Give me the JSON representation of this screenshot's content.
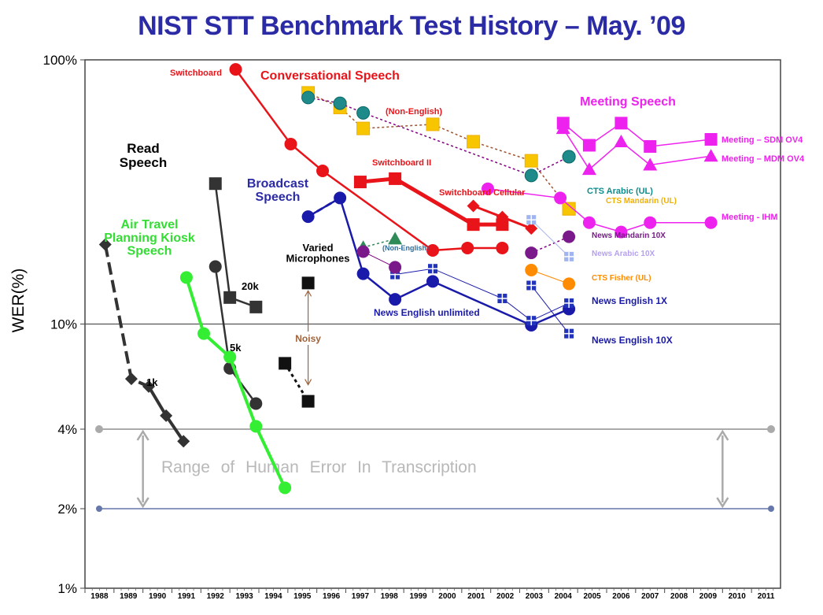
{
  "chart_data": {
    "type": "line",
    "title": "NIST STT Benchmark Test History – May. ’09",
    "xlabel": "",
    "ylabel": "WER(%)",
    "yscale": "log",
    "ylim": [
      1,
      100
    ],
    "xlim": [
      1988,
      2011
    ],
    "y_ticks": [
      {
        "value": 100,
        "label": "100%"
      },
      {
        "value": 10,
        "label": "10%"
      },
      {
        "value": 4,
        "label": "4%"
      },
      {
        "value": 2,
        "label": "2%"
      },
      {
        "value": 1,
        "label": "1%"
      }
    ],
    "x_ticks": [
      "1988",
      "1989",
      "1990",
      "1991",
      "1992",
      "1993",
      "1994",
      "1995",
      "1996",
      "1997",
      "1998",
      "1999",
      "2000",
      "2001",
      "2002",
      "2003",
      "2004",
      "2005",
      "2006",
      "2007",
      "2008",
      "2009",
      "2010",
      "2011"
    ],
    "human_error_range": {
      "label": "Range of Human Error In Transcription",
      "low": 2,
      "high": 4
    },
    "category_labels": [
      {
        "id": "read",
        "text": [
          "Read",
          "Speech"
        ],
        "color": "#000000"
      },
      {
        "id": "air",
        "text": [
          "Air Travel",
          "Planning Kiosk",
          "Speech"
        ],
        "color": "#33dd33"
      },
      {
        "id": "broadcast",
        "text": [
          "Broadcast",
          "Speech"
        ],
        "color": "#2b2ba6"
      },
      {
        "id": "conversational",
        "text": [
          "Conversational Speech"
        ],
        "color": "#e8141a"
      },
      {
        "id": "meeting",
        "text": [
          "Meeting Speech"
        ],
        "color": "#ee22ee"
      },
      {
        "id": "varied",
        "text": [
          "Varied",
          "Microphones"
        ],
        "color": "#000000"
      }
    ],
    "annotations": [
      {
        "id": "noisy",
        "text": "Noisy",
        "color": "#a0623a",
        "x": 1995.2,
        "y_from": 14.3,
        "y_to": 5.5
      }
    ],
    "series": [
      {
        "name": "Read 1k",
        "label": "1k",
        "color": "#333333",
        "marker": "diamond",
        "dash": "16,7",
        "width": 4,
        "dashed_segments": 2,
        "points": [
          [
            1988.2,
            20
          ],
          [
            1989.1,
            6.2
          ],
          [
            1989.7,
            5.8
          ],
          [
            1990.3,
            4.5
          ],
          [
            1990.9,
            3.6
          ]
        ]
      },
      {
        "name": "Read 5k",
        "label": "5k",
        "color": "#333333",
        "marker": "circle",
        "width": 2.5,
        "points": [
          [
            1992.0,
            16.5
          ],
          [
            1992.5,
            6.8
          ],
          [
            1993.4,
            5
          ]
        ]
      },
      {
        "name": "Read 20k",
        "label": "20k",
        "color": "#333333",
        "marker": "square",
        "width": 2.5,
        "points": [
          [
            1992.0,
            34
          ],
          [
            1992.5,
            12.6
          ],
          [
            1993.4,
            11.6
          ]
        ]
      },
      {
        "name": "Air Travel Planning Kiosk",
        "label": "",
        "color": "#33ee33",
        "marker": "circle",
        "width": 4,
        "points": [
          [
            1991.0,
            15
          ],
          [
            1991.6,
            9.2
          ],
          [
            1992.5,
            7.5
          ],
          [
            1993.4,
            4.1
          ],
          [
            1994.4,
            2.4
          ]
        ]
      },
      {
        "name": "Varied Microphones Noisy",
        "label": "",
        "color": "#111111",
        "marker": "square",
        "dash": "4,4",
        "width": 3,
        "points": [
          [
            1994.4,
            7.1
          ],
          [
            1995.2,
            5.1
          ]
        ]
      },
      {
        "name": "Varied Microphones",
        "label": "",
        "color": "#111111",
        "marker": "square",
        "width": 2,
        "points": [
          [
            1995.2,
            14.3
          ]
        ]
      },
      {
        "name": "Switchboard",
        "label": "Switchboard",
        "color": "#e8141a",
        "marker": "circle",
        "width": 2.5,
        "points": [
          [
            1992.7,
            92
          ],
          [
            1994.6,
            48
          ],
          [
            1995.7,
            38
          ],
          [
            1999.5,
            19
          ],
          [
            2000.7,
            19.4
          ],
          [
            2001.9,
            19.4
          ]
        ]
      },
      {
        "name": "Switchboard II",
        "label": "Switchboard II",
        "color": "#e8141a",
        "marker": "square",
        "width": 5,
        "points": [
          [
            1997.0,
            34.5
          ],
          [
            1998.2,
            35.5
          ],
          [
            2000.9,
            23.8
          ],
          [
            2001.9,
            23.8
          ]
        ]
      },
      {
        "name": "Switchboard Cellular",
        "label": "Switchboard Cellular",
        "color": "#e8141a",
        "marker": "diamond",
        "width": 3,
        "points": [
          [
            2000.9,
            28
          ],
          [
            2001.9,
            25.4
          ],
          [
            2002.9,
            23
          ]
        ]
      },
      {
        "name": "Conversational (Non-English) A",
        "label": "(Non-English)",
        "color": "#a0522d",
        "marker": "square-yellow",
        "dash": "3,3",
        "width": 1.5,
        "points": [
          [
            1995.2,
            75
          ],
          [
            1996.3,
            66
          ],
          [
            1997.1,
            55
          ],
          [
            1999.5,
            57
          ],
          [
            2000.9,
            49
          ],
          [
            2002.9,
            41.5
          ],
          [
            2004.2,
            27.3
          ]
        ]
      },
      {
        "name": "Conversational (Non-English) B",
        "label": "",
        "color": "#800080",
        "marker": "circle-teal",
        "dash": "3,3",
        "width": 1.5,
        "points": [
          [
            1995.2,
            72
          ],
          [
            1996.3,
            68.5
          ],
          [
            1997.1,
            63
          ],
          [
            2002.9,
            36.5
          ],
          [
            2004.2,
            43
          ]
        ]
      },
      {
        "name": "Broadcast",
        "label": "News English unlimited",
        "color": "#1a1aaa",
        "marker": "circle",
        "width": 2.5,
        "points": [
          [
            1995.2,
            25.5
          ],
          [
            1996.3,
            30
          ],
          [
            1997.1,
            15.5
          ],
          [
            1998.2,
            12.4
          ],
          [
            1999.5,
            14.5
          ],
          [
            2002.9,
            9.9
          ],
          [
            2004.2,
            11.4
          ]
        ]
      },
      {
        "name": "Broadcast dashed",
        "label": "",
        "color": "#1a1aaa",
        "marker": "none",
        "dash": "8,5",
        "width": 3,
        "points": [
          [
            1995.2,
            25.5
          ],
          [
            1996.3,
            30
          ]
        ]
      },
      {
        "name": "News English 1X",
        "label": "News English 1X",
        "color": "#1a1aaa",
        "marker": "square-grid",
        "width": 1,
        "points": [
          [
            1998.2,
            15.4
          ],
          [
            1999.5,
            16.2
          ],
          [
            2001.9,
            12.5
          ],
          [
            2002.9,
            10.3
          ],
          [
            2004.2,
            12
          ]
        ]
      },
      {
        "name": "News English 10X",
        "label": "News English 10X",
        "color": "#1a1aaa",
        "marker": "square-grid",
        "width": 1,
        "points": [
          [
            2002.9,
            14
          ],
          [
            2004.2,
            9.2
          ]
        ]
      },
      {
        "name": "Broadcast (Non-English)",
        "label": "(Non-English)",
        "color": "#2e8b57",
        "marker": "triangle",
        "dash": "3,3",
        "width": 1.5,
        "points": [
          [
            1997.1,
            19.5
          ],
          [
            1998.2,
            21
          ]
        ]
      },
      {
        "name": "Broadcast (Non-English) purple",
        "label": "",
        "color": "#800080",
        "marker": "circle-purple",
        "width": 1,
        "points": [
          [
            1997.1,
            18.8
          ],
          [
            1998.2,
            16.4
          ]
        ]
      },
      {
        "name": "News Mandarin 10X",
        "label": "News Mandarin 10X",
        "color": "#800080",
        "marker": "circle-purple",
        "dash": "3,3",
        "width": 1.5,
        "points": [
          [
            2002.9,
            18.6
          ],
          [
            2004.2,
            21.4
          ]
        ]
      },
      {
        "name": "News Arabic 10X",
        "label": "News Arabic 10X",
        "color": "#aab7f0",
        "marker": "square-lightgrid",
        "width": 1,
        "points": [
          [
            2002.9,
            24.8
          ],
          [
            2004.2,
            18
          ]
        ]
      },
      {
        "name": "CTS Fisher (UL)",
        "label": "CTS Fisher (UL)",
        "color": "#ff8800",
        "marker": "circle-orange",
        "width": 1,
        "points": [
          [
            2002.9,
            16
          ],
          [
            2004.2,
            14.2
          ]
        ]
      },
      {
        "name": "CTS Arabic (UL)",
        "label": "CTS Arabic (UL)",
        "color": "#008b8b",
        "marker": "circle-teal",
        "width": 1,
        "points": [
          [
            2004.2,
            43
          ]
        ]
      },
      {
        "name": "CTS Mandarin (UL)",
        "label": "CTS Mandarin (UL)",
        "color": "#f0c000",
        "marker": "square-yellow",
        "width": 1,
        "points": [
          [
            2004.2,
            27.3
          ]
        ]
      },
      {
        "name": "Meeting - SDM OV4",
        "label": "Meeting – SDM OV4",
        "color": "#ee22ee",
        "marker": "square",
        "width": 1.5,
        "points": [
          [
            2004.0,
            57.6
          ],
          [
            2004.9,
            47.5
          ],
          [
            2006.0,
            57.6
          ],
          [
            2007.0,
            47
          ],
          [
            2009.1,
            50
          ]
        ]
      },
      {
        "name": "Meeting - MDM OV4",
        "label": "Meeting – MDM OV4",
        "color": "#ee22ee",
        "marker": "triangle",
        "width": 1.5,
        "points": [
          [
            2004.0,
            55
          ],
          [
            2004.9,
            38.5
          ],
          [
            2006.0,
            49
          ],
          [
            2007.0,
            40
          ],
          [
            2009.1,
            43.2
          ]
        ]
      },
      {
        "name": "Meeting - IHM",
        "label": "Meeting - IHM",
        "color": "#ee22ee",
        "marker": "circle",
        "width": 1.5,
        "points": [
          [
            2001.4,
            32.5
          ],
          [
            2003.9,
            30
          ],
          [
            2004.9,
            24.2
          ],
          [
            2006.0,
            22.3
          ],
          [
            2007.0,
            24.2
          ],
          [
            2009.1,
            24.2
          ]
        ]
      }
    ]
  }
}
